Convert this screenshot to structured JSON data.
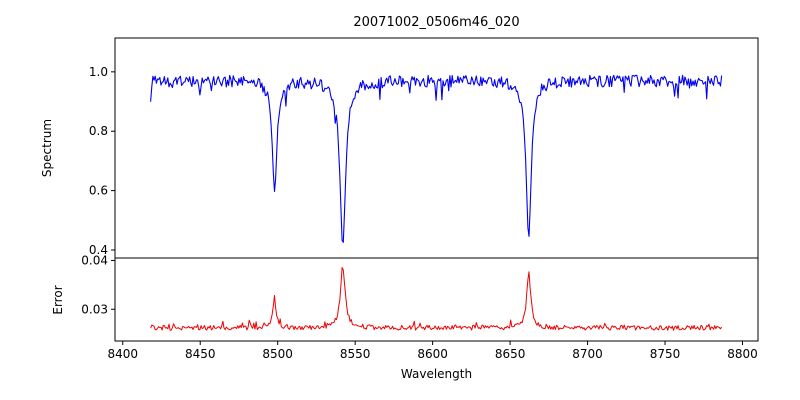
{
  "chart_data": {
    "type": "line",
    "title": "20071002_0506m46_020",
    "xlabel": "Wavelength",
    "xlim": [
      8395,
      8810
    ],
    "x_ticks": [
      8400,
      8450,
      8500,
      8550,
      8600,
      8650,
      8700,
      8750,
      8800
    ],
    "x_tick_labels": [
      "8400",
      "8450",
      "8500",
      "8550",
      "8600",
      "8650",
      "8700",
      "8750",
      "8800"
    ],
    "x_start": 8418,
    "x_end": 8787,
    "x_step": 0.74,
    "seed": 20071002,
    "grid": false,
    "legend": "none",
    "panels": [
      {
        "name": "spectrum",
        "ylabel": "Spectrum",
        "color": "#0000ee",
        "ylim": [
          0.373,
          1.114
        ],
        "y_ticks": [
          0.4,
          0.6,
          0.8,
          1.0
        ],
        "y_tick_labels": [
          "0.4",
          "0.6",
          "0.8",
          "1.0"
        ],
        "continuum": 0.97,
        "noise_amplitude": 0.02,
        "spike_prob": 0.05,
        "spike_depth": 0.07,
        "absorption_lines": [
          {
            "center": 8498,
            "depth": 0.37,
            "width": 1.8,
            "min_value": 0.6
          },
          {
            "center": 8542,
            "depth": 0.555,
            "width": 2.2,
            "min_value": 0.41
          },
          {
            "center": 8662,
            "depth": 0.53,
            "width": 2.0,
            "min_value": 0.44
          }
        ]
      },
      {
        "name": "error",
        "ylabel": "Error",
        "color": "#ee0000",
        "ylim": [
          0.0235,
          0.0405
        ],
        "y_ticks": [
          0.03,
          0.04
        ],
        "y_tick_labels": [
          "0.03",
          "0.04"
        ],
        "baseline": 0.0262,
        "noise_amplitude": 0.0005,
        "spike_prob": 0.06,
        "spike_depth": 0.0012,
        "peaks": [
          {
            "center": 8498,
            "height": 0.0053,
            "width": 1.5,
            "max_value": 0.032
          },
          {
            "center": 8542,
            "height": 0.0125,
            "width": 1.8,
            "max_value": 0.039
          },
          {
            "center": 8662,
            "height": 0.0112,
            "width": 1.6,
            "max_value": 0.038
          }
        ]
      }
    ]
  }
}
